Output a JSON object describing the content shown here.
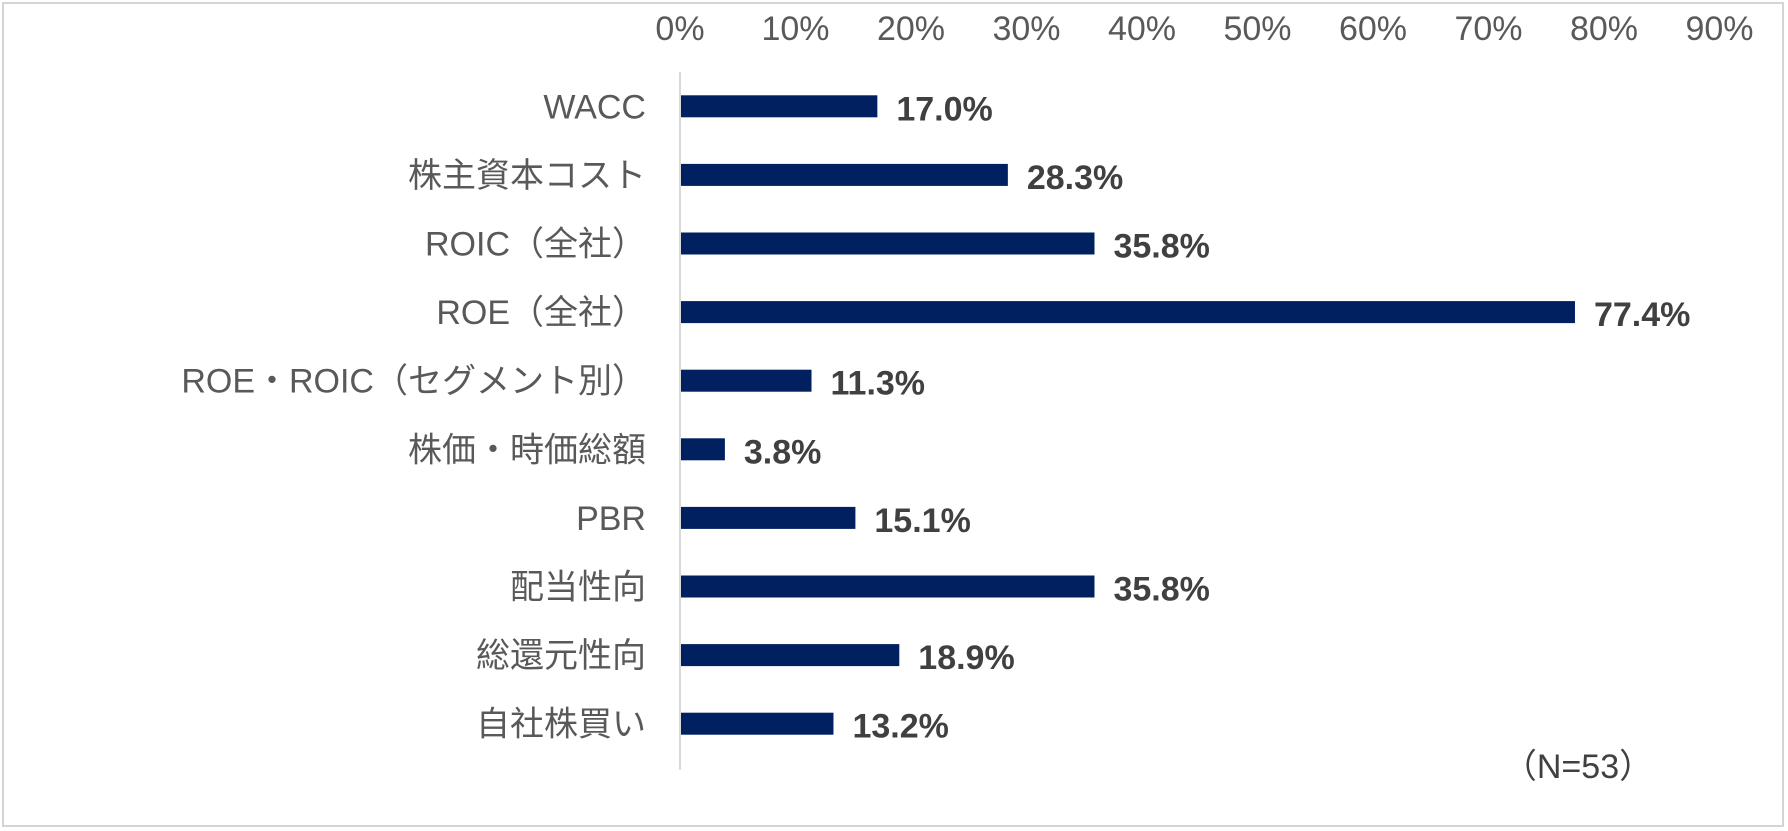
{
  "chart_data": {
    "type": "bar",
    "orientation": "horizontal",
    "categories": [
      "WACC",
      "株主資本コスト",
      "ROIC（全社）",
      "ROE（全社）",
      "ROE・ROIC（セグメント別）",
      "株価・時価総額",
      "PBR",
      "配当性向",
      "総還元性向",
      "自社株買い"
    ],
    "values": [
      17.0,
      28.3,
      35.8,
      77.4,
      11.3,
      3.8,
      15.1,
      35.8,
      18.9,
      13.2
    ],
    "value_labels": [
      "17.0%",
      "28.3%",
      "35.8%",
      "77.4%",
      "11.3%",
      "3.8%",
      "15.1%",
      "35.8%",
      "18.9%",
      "13.2%"
    ],
    "xlim": [
      0,
      90
    ],
    "x_ticks": [
      "0%",
      "10%",
      "20%",
      "30%",
      "40%",
      "50%",
      "60%",
      "70%",
      "80%",
      "90%"
    ],
    "x_axis_position": "top",
    "grid": false,
    "bar_color": "#002060",
    "annotation": "（N=53）"
  }
}
